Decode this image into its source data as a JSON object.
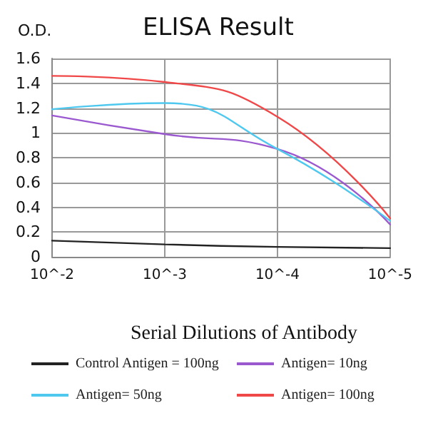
{
  "chart_data": {
    "type": "line",
    "title": "ELISA Result",
    "ylabel": "O.D.",
    "xlabel": "Serial Dilutions of Antibody",
    "categories": [
      "10^-2",
      "10^-3",
      "10^-4",
      "10^-5"
    ],
    "series": [
      {
        "name": "Control Antigen = 100ng",
        "color": "#222222",
        "values": [
          0.13,
          0.1,
          0.08,
          0.07
        ]
      },
      {
        "name": "Antigen= 10ng",
        "color": "#9b59d0",
        "values": [
          1.14,
          0.99,
          0.87,
          0.26
        ]
      },
      {
        "name": "Antigen= 50ng",
        "color": "#4fc8ef",
        "values": [
          1.19,
          1.24,
          0.87,
          0.29
        ]
      },
      {
        "name": "Antigen= 100ng",
        "color": "#f04848",
        "values": [
          1.46,
          1.41,
          1.13,
          0.31
        ]
      }
    ],
    "ylim": [
      0,
      1.6
    ],
    "yticks": [
      0,
      0.2,
      0.4,
      0.6,
      0.8,
      1,
      1.2,
      1.4,
      1.6
    ],
    "grid": true,
    "legend": "bottom",
    "marker": "none",
    "line_style": "solid"
  }
}
